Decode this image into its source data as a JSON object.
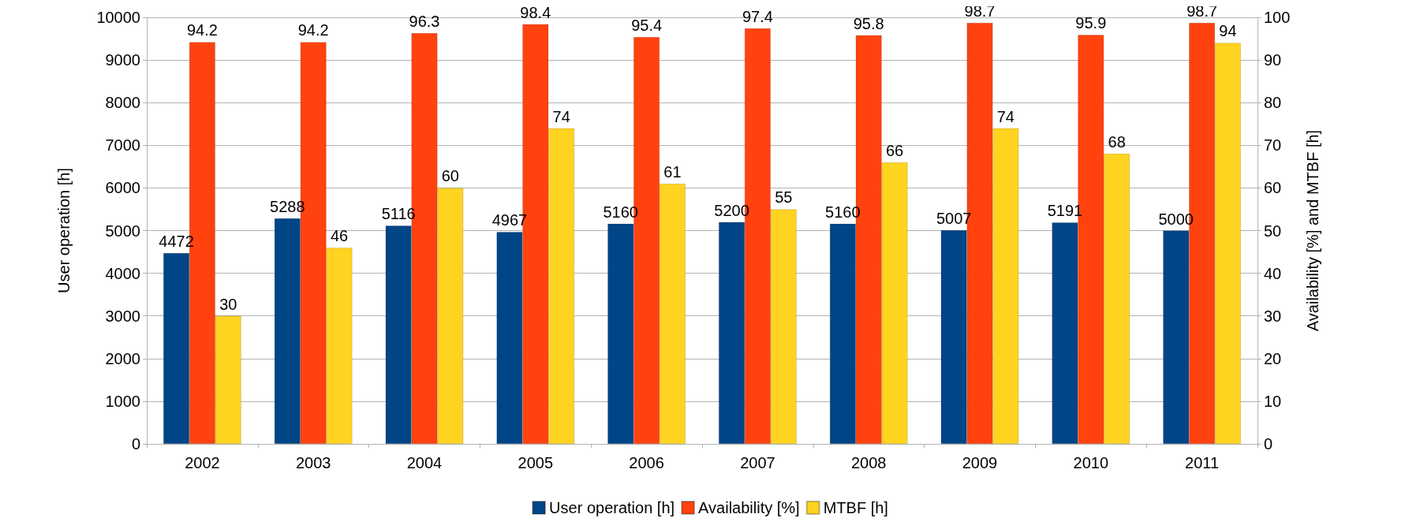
{
  "chart_data": {
    "type": "bar",
    "categories": [
      "2002",
      "2003",
      "2004",
      "2005",
      "2006",
      "2007",
      "2008",
      "2009",
      "2010",
      "2011"
    ],
    "series": [
      {
        "name": "User operation [h]",
        "color": "#004586",
        "values": [
          4472,
          5288,
          5116,
          4967,
          5160,
          5200,
          5160,
          5007,
          5191,
          5000
        ]
      },
      {
        "name": "Availability [%]",
        "color": "#ff420e",
        "axis": "y2",
        "values": [
          94.2,
          94.2,
          96.3,
          98.4,
          95.4,
          97.4,
          95.8,
          98.7,
          95.9,
          98.7
        ]
      },
      {
        "name": "MTBF [h]",
        "color": "#ffd320",
        "axis": "y2",
        "values": [
          30,
          46,
          60,
          74,
          61,
          55,
          66,
          74,
          68,
          94
        ]
      }
    ],
    "ylabel": "User operation [h]",
    "y2label": "Availability [%] and MTBF [h]",
    "ylim": [
      0,
      10000
    ],
    "yticks": [
      0,
      1000,
      2000,
      3000,
      4000,
      5000,
      6000,
      7000,
      8000,
      9000,
      10000
    ],
    "y2lim": [
      0,
      100
    ],
    "y2ticks": [
      0,
      10,
      20,
      30,
      40,
      50,
      60,
      70,
      80,
      90,
      100
    ],
    "grid": "y",
    "legend": "bottom",
    "data_labels": true
  }
}
